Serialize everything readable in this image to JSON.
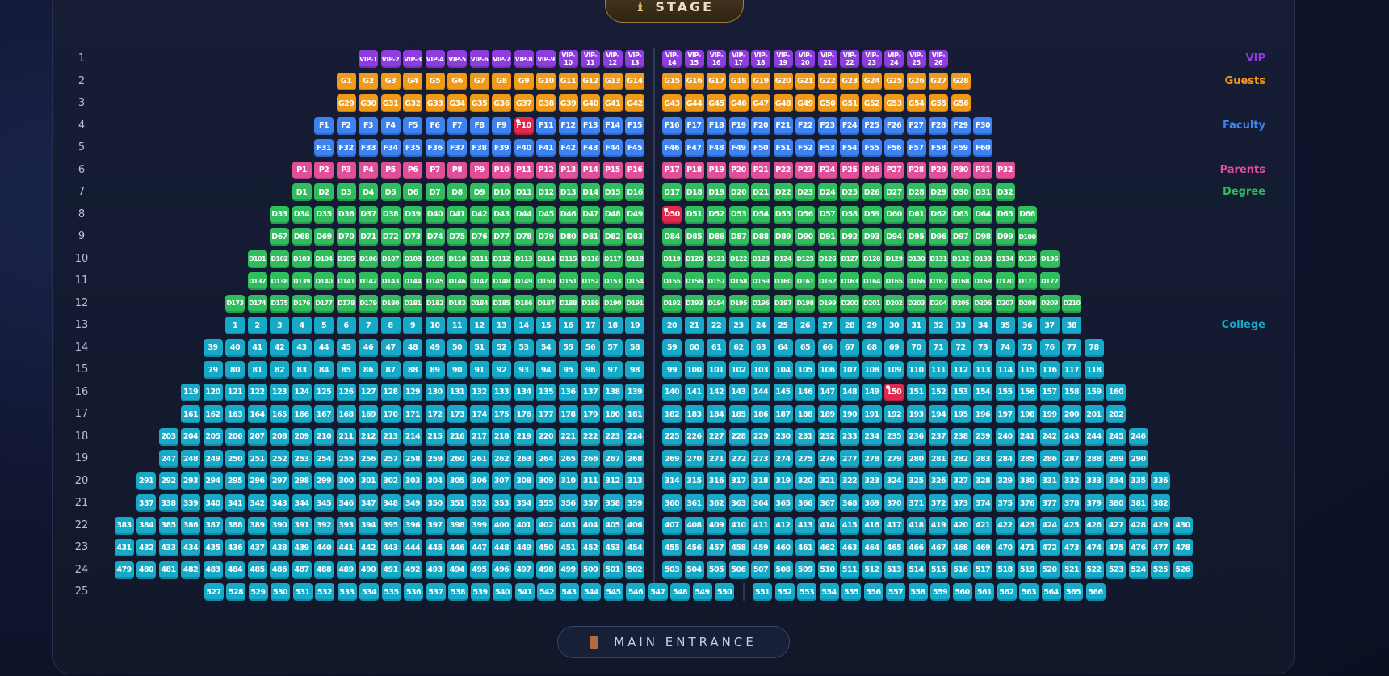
{
  "stage": {
    "label": "STAGE",
    "icon": "theater-masks-icon"
  },
  "entrance": {
    "label": "MAIN ENTRANCE",
    "icon": "door-icon"
  },
  "categories": {
    "vip": {
      "label": "VIP",
      "color": "#8e3be0"
    },
    "guests": {
      "label": "Guests",
      "color": "#f09a18"
    },
    "faculty": {
      "label": "Faculty",
      "color": "#3c82f0"
    },
    "parents": {
      "label": "Parents",
      "color": "#e04f98"
    },
    "degree": {
      "label": "Degree",
      "color": "#2fbd5e"
    },
    "college": {
      "label": "College",
      "color": "#17a9c8"
    },
    "reserved": {
      "color": "#e0294d"
    }
  },
  "legend": [
    {
      "label": "VIP",
      "category": "vip",
      "row": 1
    },
    {
      "label": "Guests",
      "category": "guests",
      "row": 2
    },
    {
      "label": "Faculty",
      "category": "faculty",
      "row": 4
    },
    {
      "label": "Parents",
      "category": "parents",
      "row": 6
    },
    {
      "label": "Degree",
      "category": "degree",
      "row": 7
    },
    {
      "label": "College",
      "category": "college",
      "row": 13
    }
  ],
  "rows": [
    {
      "row": "1",
      "category": "vip",
      "left": [
        "VIP-1",
        "VIP-2",
        "VIP-3",
        "VIP-4",
        "VIP-5",
        "VIP-6",
        "VIP-7",
        "VIP-8",
        "VIP-9",
        "VIP-10",
        "VIP-11",
        "VIP-12",
        "VIP-13"
      ],
      "right": [
        "VIP-14",
        "VIP-15",
        "VIP-16",
        "VIP-17",
        "VIP-18",
        "VIP-19",
        "VIP-20",
        "VIP-21",
        "VIP-22",
        "VIP-23",
        "VIP-24",
        "VIP-25",
        "VIP-26"
      ]
    },
    {
      "row": "2",
      "category": "guests",
      "left": [
        "G1",
        "G2",
        "G3",
        "G4",
        "G5",
        "G6",
        "G7",
        "G8",
        "G9",
        "G10",
        "G11",
        "G12",
        "G13",
        "G14"
      ],
      "right": [
        "G15",
        "G16",
        "G17",
        "G18",
        "G19",
        "G20",
        "G21",
        "G22",
        "G23",
        "G24",
        "G25",
        "G26",
        "G27",
        "G28"
      ]
    },
    {
      "row": "3",
      "category": "guests",
      "left": [
        "G29",
        "G30",
        "G31",
        "G32",
        "G33",
        "G34",
        "G35",
        "G36",
        "G37",
        "G38",
        "G39",
        "G40",
        "G41",
        "G42"
      ],
      "right": [
        "G43",
        "G44",
        "G45",
        "G46",
        "G47",
        "G48",
        "G49",
        "G50",
        "G51",
        "G52",
        "G53",
        "G54",
        "G55",
        "G56"
      ]
    },
    {
      "row": "4",
      "category": "faculty",
      "left": [
        "F1",
        "F2",
        "F3",
        "F4",
        "F5",
        "F6",
        "F7",
        "F8",
        "F9",
        "F10",
        "F11",
        "F12",
        "F13",
        "F14",
        "F15"
      ],
      "right": [
        "F16",
        "F17",
        "F18",
        "F19",
        "F20",
        "F21",
        "F22",
        "F23",
        "F24",
        "F25",
        "F26",
        "F27",
        "F28",
        "F29",
        "F30"
      ],
      "reserved": [
        "F10"
      ]
    },
    {
      "row": "5",
      "category": "faculty",
      "left": [
        "F31",
        "F32",
        "F33",
        "F34",
        "F35",
        "F36",
        "F37",
        "F38",
        "F39",
        "F40",
        "F41",
        "F42",
        "F43",
        "F44",
        "F45"
      ],
      "right": [
        "F46",
        "F47",
        "F48",
        "F49",
        "F50",
        "F51",
        "F52",
        "F53",
        "F54",
        "F55",
        "F56",
        "F57",
        "F58",
        "F59",
        "F60"
      ]
    },
    {
      "row": "6",
      "category": "parents",
      "left": [
        "P1",
        "P2",
        "P3",
        "P4",
        "P5",
        "P6",
        "P7",
        "P8",
        "P9",
        "P10",
        "P11",
        "P12",
        "P13",
        "P14",
        "P15",
        "P16"
      ],
      "right": [
        "P17",
        "P18",
        "P19",
        "P20",
        "P21",
        "P22",
        "P23",
        "P24",
        "P25",
        "P26",
        "P27",
        "P28",
        "P29",
        "P30",
        "P31",
        "P32"
      ]
    },
    {
      "row": "7",
      "category": "degree",
      "left": [
        "D1",
        "D2",
        "D3",
        "D4",
        "D5",
        "D6",
        "D7",
        "D8",
        "D9",
        "D10",
        "D11",
        "D12",
        "D13",
        "D14",
        "D15",
        "D16"
      ],
      "right": [
        "D17",
        "D18",
        "D19",
        "D20",
        "D21",
        "D22",
        "D23",
        "D24",
        "D25",
        "D26",
        "D27",
        "D28",
        "D29",
        "D30",
        "D31",
        "D32"
      ]
    },
    {
      "row": "8",
      "category": "degree",
      "left": [
        "D33",
        "D34",
        "D35",
        "D36",
        "D37",
        "D38",
        "D39",
        "D40",
        "D41",
        "D42",
        "D43",
        "D44",
        "D45",
        "D46",
        "D47",
        "D48",
        "D49"
      ],
      "right": [
        "D50",
        "D51",
        "D52",
        "D53",
        "D54",
        "D55",
        "D56",
        "D57",
        "D58",
        "D59",
        "D60",
        "D61",
        "D62",
        "D63",
        "D64",
        "D65",
        "D66"
      ],
      "reserved": [
        "D50"
      ]
    },
    {
      "row": "9",
      "category": "degree",
      "left": [
        "D67",
        "D68",
        "D69",
        "D70",
        "D71",
        "D72",
        "D73",
        "D74",
        "D75",
        "D76",
        "D77",
        "D78",
        "D79",
        "D80",
        "D81",
        "D82",
        "D83"
      ],
      "right": [
        "D84",
        "D85",
        "D86",
        "D87",
        "D88",
        "D89",
        "D90",
        "D91",
        "D92",
        "D93",
        "D94",
        "D95",
        "D96",
        "D97",
        "D98",
        "D99",
        "D100"
      ]
    },
    {
      "row": "10",
      "category": "degree",
      "left": [
        "D101",
        "D102",
        "D103",
        "D104",
        "D105",
        "D106",
        "D107",
        "D108",
        "D109",
        "D110",
        "D111",
        "D112",
        "D113",
        "D114",
        "D115",
        "D116",
        "D117",
        "D118"
      ],
      "right": [
        "D119",
        "D120",
        "D121",
        "D122",
        "D123",
        "D124",
        "D125",
        "D126",
        "D127",
        "D128",
        "D129",
        "D130",
        "D131",
        "D132",
        "D133",
        "D134",
        "D135",
        "D136"
      ]
    },
    {
      "row": "11",
      "category": "degree",
      "left": [
        "D137",
        "D138",
        "D139",
        "D140",
        "D141",
        "D142",
        "D143",
        "D144",
        "D145",
        "D146",
        "D147",
        "D148",
        "D149",
        "D150",
        "D151",
        "D152",
        "D153",
        "D154"
      ],
      "right": [
        "D155",
        "D156",
        "D157",
        "D158",
        "D159",
        "D160",
        "D161",
        "D162",
        "D163",
        "D164",
        "D165",
        "D166",
        "D167",
        "D168",
        "D169",
        "D170",
        "D171",
        "D172"
      ]
    },
    {
      "row": "12",
      "category": "degree",
      "left": [
        "D173",
        "D174",
        "D175",
        "D176",
        "D177",
        "D178",
        "D179",
        "D180",
        "D181",
        "D182",
        "D183",
        "D184",
        "D185",
        "D186",
        "D187",
        "D188",
        "D189",
        "D190",
        "D191"
      ],
      "right": [
        "D192",
        "D193",
        "D194",
        "D195",
        "D196",
        "D197",
        "D198",
        "D199",
        "D200",
        "D201",
        "D202",
        "D203",
        "D204",
        "D205",
        "D206",
        "D207",
        "D208",
        "D209",
        "D210"
      ]
    },
    {
      "row": "13",
      "category": "college",
      "left": [
        "1",
        "2",
        "3",
        "4",
        "5",
        "6",
        "7",
        "8",
        "9",
        "10",
        "11",
        "12",
        "13",
        "14",
        "15",
        "16",
        "17",
        "18",
        "19"
      ],
      "right": [
        "20",
        "21",
        "22",
        "23",
        "24",
        "25",
        "26",
        "27",
        "28",
        "29",
        "30",
        "31",
        "32",
        "33",
        "34",
        "35",
        "36",
        "37",
        "38"
      ]
    },
    {
      "row": "14",
      "category": "college",
      "left": [
        "39",
        "40",
        "41",
        "42",
        "43",
        "44",
        "45",
        "46",
        "47",
        "48",
        "49",
        "50",
        "51",
        "52",
        "53",
        "54",
        "55",
        "56",
        "57",
        "58"
      ],
      "right": [
        "59",
        "60",
        "61",
        "62",
        "63",
        "64",
        "65",
        "66",
        "67",
        "68",
        "69",
        "70",
        "71",
        "72",
        "73",
        "74",
        "75",
        "76",
        "77",
        "78"
      ]
    },
    {
      "row": "15",
      "category": "college",
      "left": [
        "79",
        "80",
        "81",
        "82",
        "83",
        "84",
        "85",
        "86",
        "87",
        "88",
        "89",
        "90",
        "91",
        "92",
        "93",
        "94",
        "95",
        "96",
        "97",
        "98"
      ],
      "right": [
        "99",
        "100",
        "101",
        "102",
        "103",
        "104",
        "105",
        "106",
        "107",
        "108",
        "109",
        "110",
        "111",
        "112",
        "113",
        "114",
        "115",
        "116",
        "117",
        "118"
      ]
    },
    {
      "row": "16",
      "category": "college",
      "left": [
        "119",
        "120",
        "121",
        "122",
        "123",
        "124",
        "125",
        "126",
        "127",
        "128",
        "129",
        "130",
        "131",
        "132",
        "133",
        "134",
        "135",
        "136",
        "137",
        "138",
        "139"
      ],
      "right": [
        "140",
        "141",
        "142",
        "143",
        "144",
        "145",
        "146",
        "147",
        "148",
        "149",
        "150",
        "151",
        "152",
        "153",
        "154",
        "155",
        "156",
        "157",
        "158",
        "159",
        "160"
      ],
      "reserved": [
        "150"
      ]
    },
    {
      "row": "17",
      "category": "college",
      "left": [
        "161",
        "162",
        "163",
        "164",
        "165",
        "166",
        "167",
        "168",
        "169",
        "170",
        "171",
        "172",
        "173",
        "174",
        "175",
        "176",
        "177",
        "178",
        "179",
        "180",
        "181"
      ],
      "right": [
        "182",
        "183",
        "184",
        "185",
        "186",
        "187",
        "188",
        "189",
        "190",
        "191",
        "192",
        "193",
        "194",
        "195",
        "196",
        "197",
        "198",
        "199",
        "200",
        "201",
        "202"
      ]
    },
    {
      "row": "18",
      "category": "college",
      "left": [
        "203",
        "204",
        "205",
        "206",
        "207",
        "208",
        "209",
        "210",
        "211",
        "212",
        "213",
        "214",
        "215",
        "216",
        "217",
        "218",
        "219",
        "220",
        "221",
        "222",
        "223",
        "224"
      ],
      "right": [
        "225",
        "226",
        "227",
        "228",
        "229",
        "230",
        "231",
        "232",
        "233",
        "234",
        "235",
        "236",
        "237",
        "238",
        "239",
        "240",
        "241",
        "242",
        "243",
        "244",
        "245",
        "246"
      ]
    },
    {
      "row": "19",
      "category": "college",
      "left": [
        "247",
        "248",
        "249",
        "250",
        "251",
        "252",
        "253",
        "254",
        "255",
        "256",
        "257",
        "258",
        "259",
        "260",
        "261",
        "262",
        "263",
        "264",
        "265",
        "266",
        "267",
        "268"
      ],
      "right": [
        "269",
        "270",
        "271",
        "272",
        "273",
        "274",
        "275",
        "276",
        "277",
        "278",
        "279",
        "280",
        "281",
        "282",
        "283",
        "284",
        "285",
        "286",
        "287",
        "288",
        "289",
        "290"
      ]
    },
    {
      "row": "20",
      "category": "college",
      "left": [
        "291",
        "292",
        "293",
        "294",
        "295",
        "296",
        "297",
        "298",
        "299",
        "300",
        "301",
        "302",
        "303",
        "304",
        "305",
        "306",
        "307",
        "308",
        "309",
        "310",
        "311",
        "312",
        "313"
      ],
      "right": [
        "314",
        "315",
        "316",
        "317",
        "318",
        "319",
        "320",
        "321",
        "322",
        "323",
        "324",
        "325",
        "326",
        "327",
        "328",
        "329",
        "330",
        "331",
        "332",
        "333",
        "334",
        "335",
        "336"
      ]
    },
    {
      "row": "21",
      "category": "college",
      "left": [
        "337",
        "338",
        "339",
        "340",
        "341",
        "342",
        "343",
        "344",
        "345",
        "346",
        "347",
        "348",
        "349",
        "350",
        "351",
        "352",
        "353",
        "354",
        "355",
        "356",
        "357",
        "358",
        "359"
      ],
      "right": [
        "360",
        "361",
        "362",
        "363",
        "364",
        "365",
        "366",
        "367",
        "368",
        "369",
        "370",
        "371",
        "372",
        "373",
        "374",
        "375",
        "376",
        "377",
        "378",
        "379",
        "380",
        "381",
        "382"
      ]
    },
    {
      "row": "22",
      "category": "college",
      "left": [
        "383",
        "384",
        "385",
        "386",
        "387",
        "388",
        "389",
        "390",
        "391",
        "392",
        "393",
        "394",
        "395",
        "396",
        "397",
        "398",
        "399",
        "400",
        "401",
        "402",
        "403",
        "404",
        "405",
        "406"
      ],
      "right": [
        "407",
        "408",
        "409",
        "410",
        "411",
        "412",
        "413",
        "414",
        "415",
        "416",
        "417",
        "418",
        "419",
        "420",
        "421",
        "422",
        "423",
        "424",
        "425",
        "426",
        "427",
        "428",
        "429",
        "430"
      ]
    },
    {
      "row": "23",
      "category": "college",
      "left": [
        "431",
        "432",
        "433",
        "434",
        "435",
        "436",
        "437",
        "438",
        "439",
        "440",
        "441",
        "442",
        "443",
        "444",
        "445",
        "446",
        "447",
        "448",
        "449",
        "450",
        "451",
        "452",
        "453",
        "454"
      ],
      "right": [
        "455",
        "456",
        "457",
        "458",
        "459",
        "460",
        "461",
        "462",
        "463",
        "464",
        "465",
        "466",
        "467",
        "468",
        "469",
        "470",
        "471",
        "472",
        "473",
        "474",
        "475",
        "476",
        "477",
        "478"
      ]
    },
    {
      "row": "24",
      "category": "college",
      "left": [
        "479",
        "480",
        "481",
        "482",
        "483",
        "484",
        "485",
        "486",
        "487",
        "488",
        "489",
        "490",
        "491",
        "492",
        "493",
        "494",
        "495",
        "496",
        "497",
        "498",
        "499",
        "500",
        "501",
        "502"
      ],
      "right": [
        "503",
        "504",
        "505",
        "506",
        "507",
        "508",
        "509",
        "510",
        "511",
        "512",
        "513",
        "514",
        "515",
        "516",
        "517",
        "518",
        "519",
        "520",
        "521",
        "522",
        "523",
        "524",
        "525",
        "526"
      ]
    },
    {
      "row": "25",
      "category": "college",
      "left": [
        "527",
        "528",
        "529",
        "530",
        "531",
        "532",
        "533",
        "534",
        "535",
        "536",
        "537",
        "538",
        "539",
        "540",
        "541",
        "542",
        "543",
        "544",
        "545",
        "546",
        "547",
        "548",
        "549",
        "550"
      ],
      "right": [
        "551",
        "552",
        "553",
        "554",
        "555",
        "556",
        "557",
        "558",
        "559",
        "560",
        "561",
        "562",
        "563",
        "564",
        "565",
        "566"
      ]
    }
  ]
}
